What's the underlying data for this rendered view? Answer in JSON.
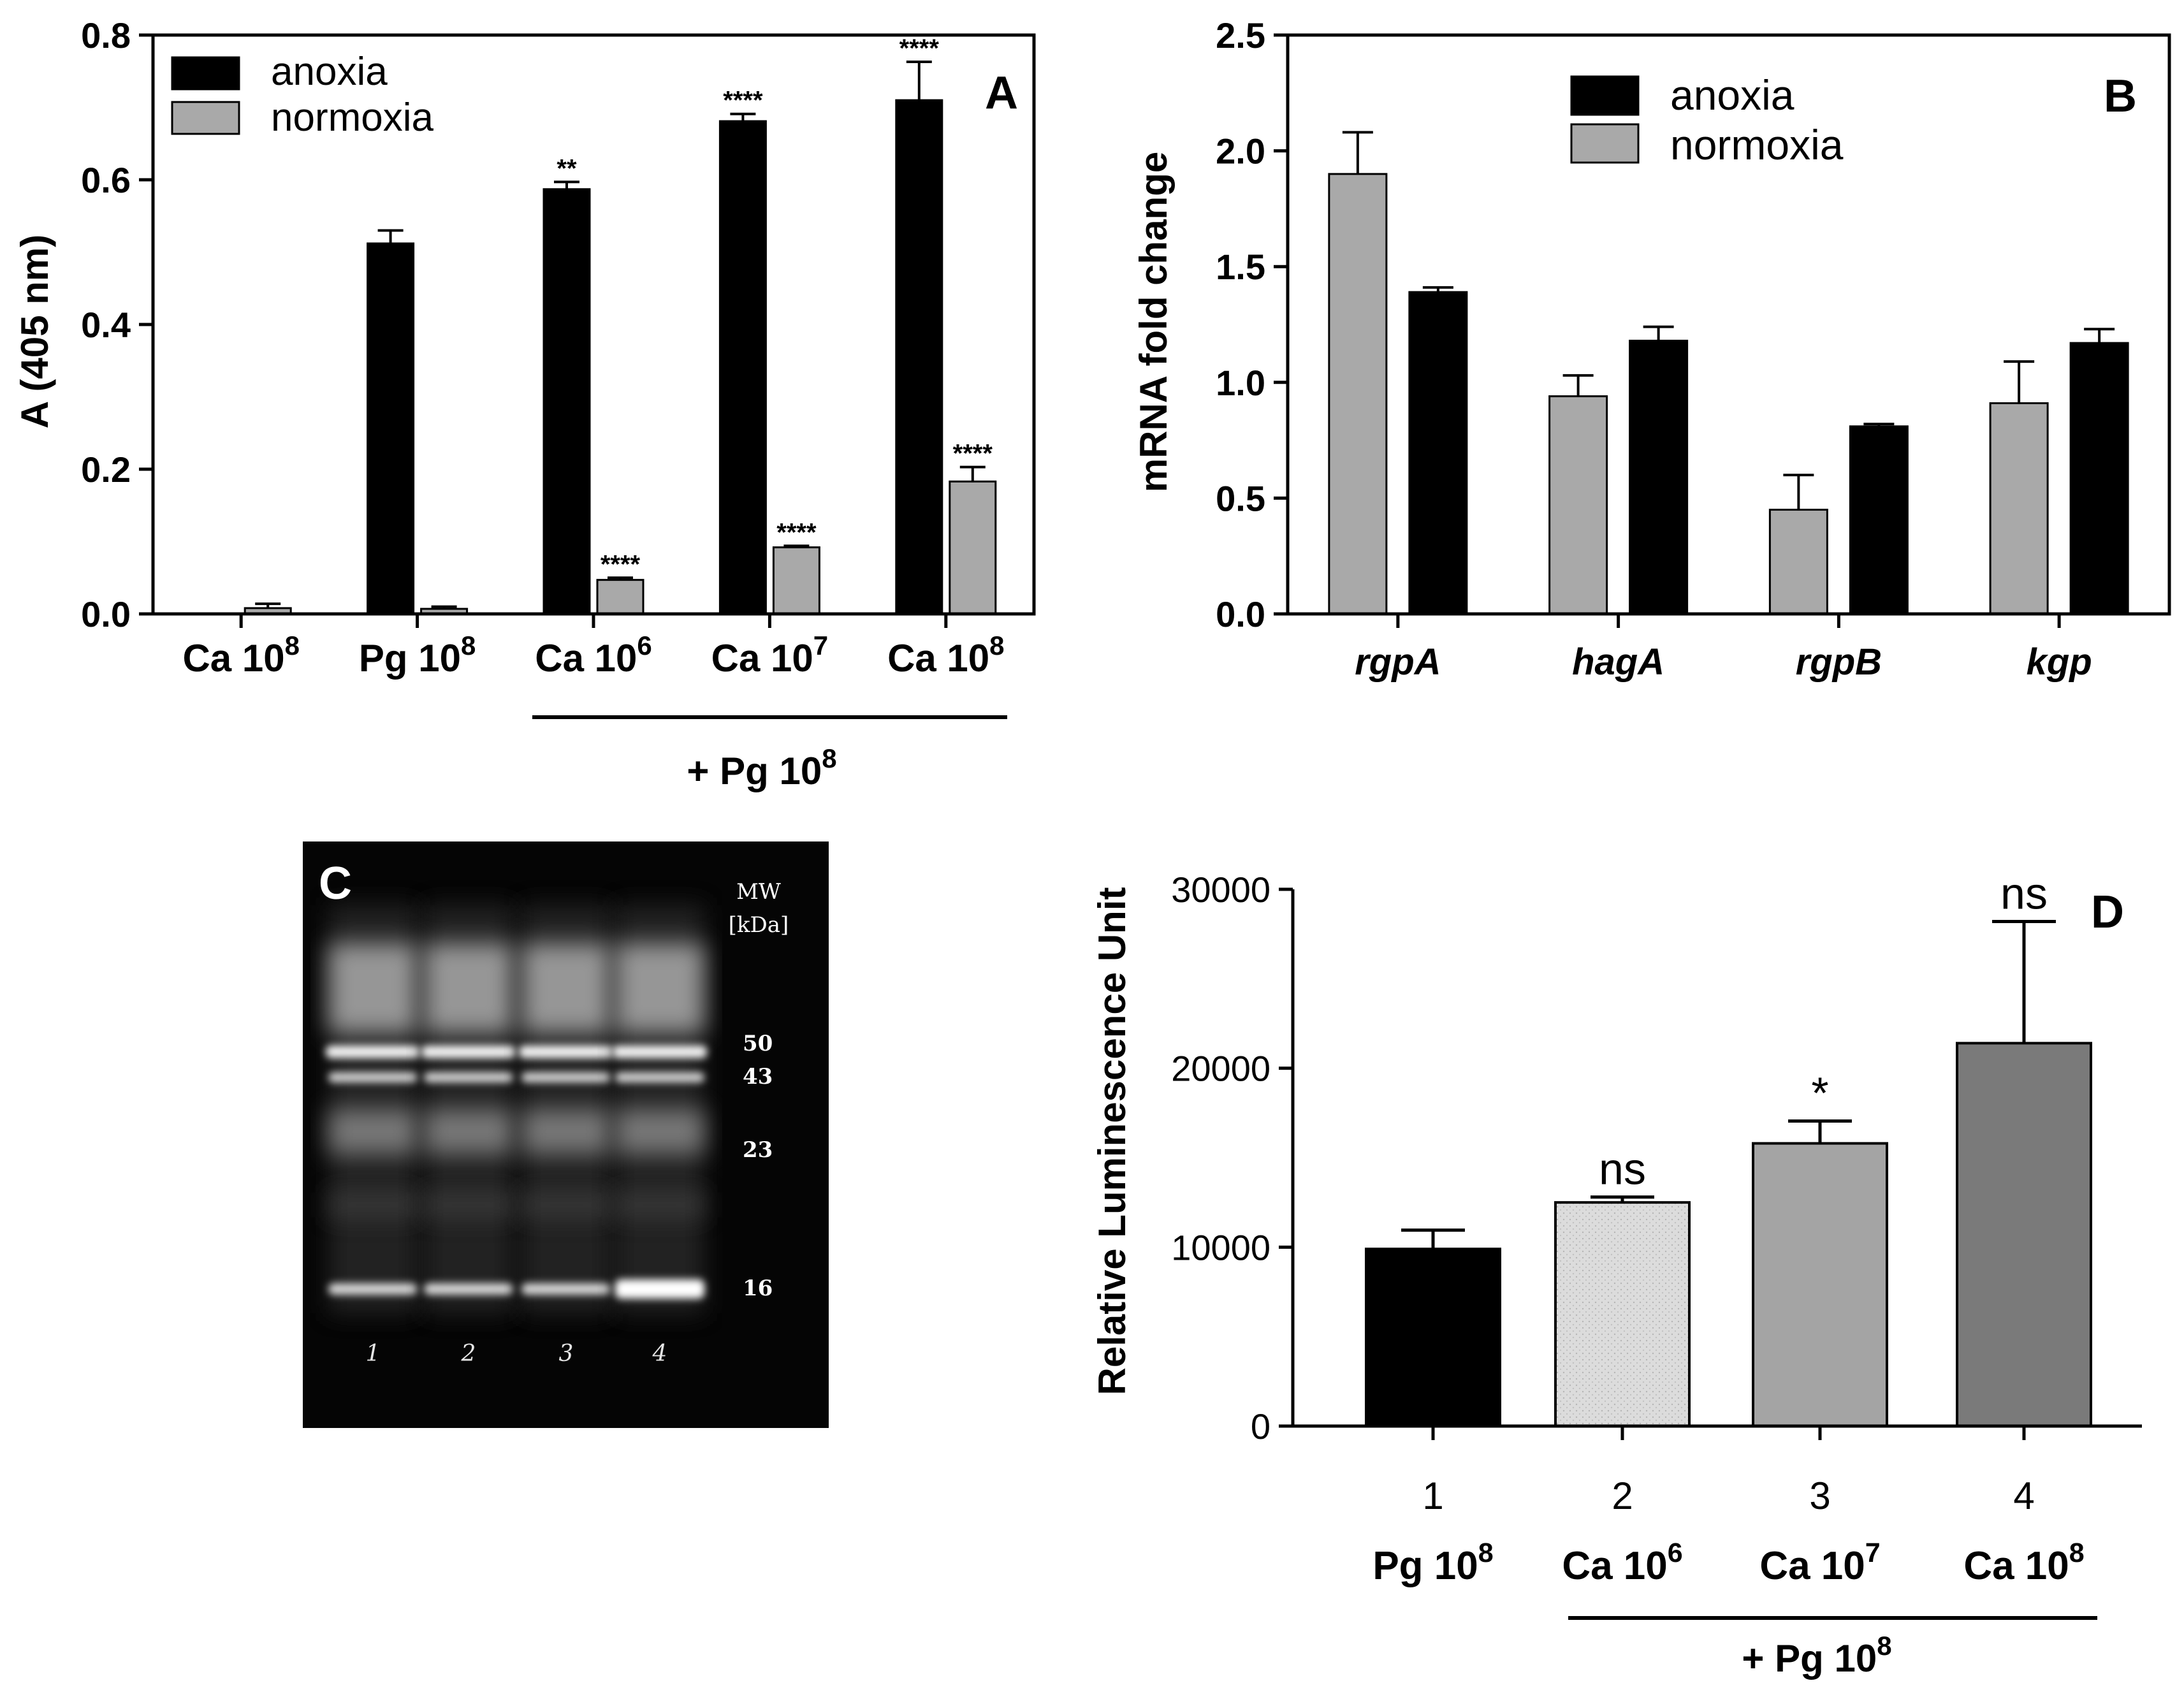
{
  "chart_data": [
    {
      "panel": "A",
      "type": "bar",
      "ylabel": "A (405 nm)",
      "ylim": [
        0,
        0.8
      ],
      "yticks": [
        "0.0",
        "0.2",
        "0.4",
        "0.6",
        "0.8"
      ],
      "categories": [
        {
          "base": "Ca 10",
          "sup": "8"
        },
        {
          "base": "Pg 10",
          "sup": "8"
        },
        {
          "base": "Ca 10",
          "sup": "6"
        },
        {
          "base": "Ca 10",
          "sup": "7"
        },
        {
          "base": "Ca 10",
          "sup": "8"
        }
      ],
      "series": [
        {
          "name": "anoxia",
          "color": "#000000",
          "values": [
            0.0,
            0.512,
            0.587,
            0.681,
            0.71
          ],
          "errors": [
            0.0,
            0.018,
            0.01,
            0.01,
            0.053
          ],
          "annotations": [
            "",
            "",
            "**",
            "****",
            "****"
          ]
        },
        {
          "name": "normoxia",
          "color": "#a9a9a9",
          "values": [
            0.008,
            0.007,
            0.047,
            0.092,
            0.183
          ],
          "errors": [
            0.006,
            0.003,
            0.003,
            0.002,
            0.02
          ],
          "annotations": [
            "",
            "",
            "****",
            "****",
            "****"
          ]
        }
      ],
      "group_label": {
        "base": "+ Pg 10",
        "sup": "8"
      }
    },
    {
      "panel": "B",
      "type": "bar",
      "ylabel": "mRNA fold change",
      "ylim": [
        0,
        2.5
      ],
      "yticks": [
        "0.0",
        "0.5",
        "1.0",
        "1.5",
        "2.0",
        "2.5"
      ],
      "categories": [
        "rgpA",
        "hagA",
        "rgpB",
        "kgp"
      ],
      "series": [
        {
          "name": "normoxia",
          "color": "#a9a9a9",
          "values": [
            1.9,
            0.94,
            0.45,
            0.91
          ],
          "errors": [
            0.18,
            0.09,
            0.15,
            0.18
          ]
        },
        {
          "name": "anoxia",
          "color": "#000000",
          "values": [
            1.39,
            1.18,
            0.81,
            1.17
          ],
          "errors": [
            0.02,
            0.06,
            0.01,
            0.06
          ]
        }
      ],
      "legend": [
        "anoxia",
        "normoxia"
      ]
    },
    {
      "panel": "D",
      "type": "bar",
      "ylabel": "Relative Luminescence Unit",
      "ylim": [
        0,
        30000
      ],
      "yticks": [
        "0",
        "10000",
        "20000",
        "30000"
      ],
      "categories": [
        {
          "num": "1",
          "base": "Pg 10",
          "sup": "8"
        },
        {
          "num": "2",
          "base": "Ca 10",
          "sup": "6"
        },
        {
          "num": "3",
          "base": "Ca 10",
          "sup": "7"
        },
        {
          "num": "4",
          "base": "Ca 10",
          "sup": "8"
        }
      ],
      "values": [
        9900,
        12500,
        15800,
        21400
      ],
      "errors": [
        1050,
        300,
        1250,
        6800
      ],
      "colors": [
        "#000000",
        "#dcdcdc",
        "#a4a4a4",
        "#7a7a7a"
      ],
      "annotations": [
        "",
        "ns",
        "*",
        "ns"
      ],
      "group_label": {
        "base": "+ Pg 10",
        "sup": "8"
      }
    }
  ],
  "gel": {
    "panel": "C",
    "mw_title_line1": "MW",
    "mw_title_line2": "[kDa]",
    "markers": [
      "50",
      "43",
      "23",
      "16"
    ],
    "lanes": [
      "1",
      "2",
      "3",
      "4"
    ]
  }
}
